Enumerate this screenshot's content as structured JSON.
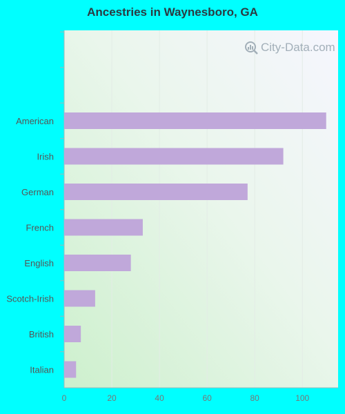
{
  "watermark": "City-Data.com",
  "colors": {
    "bar": "#C0A8DA",
    "background": "#00FFFF",
    "axis": "#9fb8b8"
  },
  "chart_data": {
    "type": "bar",
    "orientation": "horizontal",
    "title": "Ancestries in Waynesboro, GA",
    "categories": [
      "American",
      "Irish",
      "German",
      "French",
      "English",
      "Scotch-Irish",
      "British",
      "Italian"
    ],
    "values": [
      110,
      92,
      77,
      33,
      28,
      13,
      7,
      5
    ],
    "xlim": [
      0,
      115
    ],
    "xticks": [
      0,
      20,
      40,
      60,
      80,
      100
    ],
    "grid": true,
    "legend": "none"
  }
}
